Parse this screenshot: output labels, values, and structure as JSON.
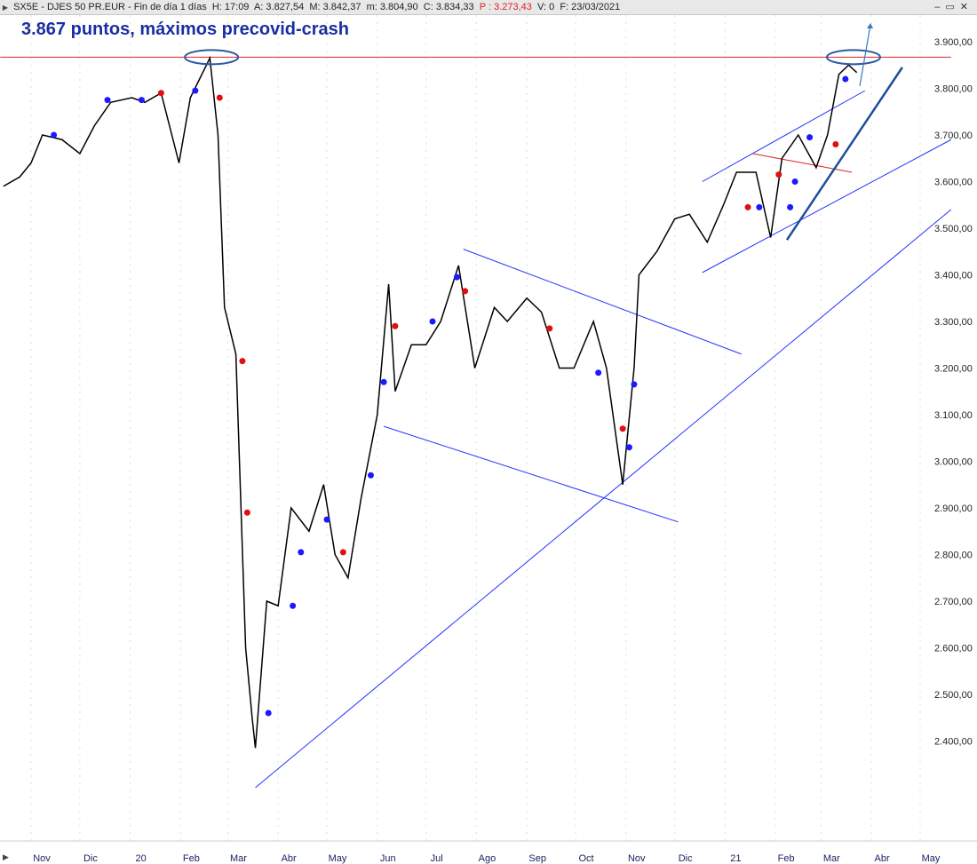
{
  "header": {
    "symbol": "SX5E - DJES 50 PR.EUR - Fin de día 1 días",
    "h": "H: 17:09",
    "a": "A: 3.827,54",
    "m_high": "M: 3.842,37",
    "m_low": "m: 3.804,90",
    "c": "C: 3.834,33",
    "p": "P : 3.273,43",
    "v": "V: 0",
    "f": "F: 23/03/2021"
  },
  "annotation": "3.867 puntos, máximos precovid-crash",
  "chart_data": {
    "type": "line",
    "title": "3.867 puntos, máximos precovid-crash",
    "ylim": [
      2280,
      3960
    ],
    "yticks": [
      2400,
      2500,
      2600,
      2700,
      2800,
      2900,
      3000,
      3100,
      3200,
      3300,
      3400,
      3500,
      3600,
      3700,
      3800,
      3900
    ],
    "ytick_labels": [
      "2.400,00",
      "2.500,00",
      "2.600,00",
      "2.700,00",
      "2.800,00",
      "2.900,00",
      "3.000,00",
      "3.100,00",
      "3.200,00",
      "3.300,00",
      "3.400,00",
      "3.500,00",
      "3.600,00",
      "3.700,00",
      "3.800,00",
      "3.900,00"
    ],
    "xticks": [
      {
        "date": "2019-11-01",
        "label": "Nov"
      },
      {
        "date": "2019-12-01",
        "label": "Dic"
      },
      {
        "date": "2020-01-01",
        "label": "20"
      },
      {
        "date": "2020-02-01",
        "label": "Feb"
      },
      {
        "date": "2020-03-01",
        "label": "Mar"
      },
      {
        "date": "2020-04-01",
        "label": "Abr"
      },
      {
        "date": "2020-05-01",
        "label": "May"
      },
      {
        "date": "2020-06-01",
        "label": "Jun"
      },
      {
        "date": "2020-07-01",
        "label": "Jul"
      },
      {
        "date": "2020-08-01",
        "label": "Ago"
      },
      {
        "date": "2020-09-01",
        "label": "Sep"
      },
      {
        "date": "2020-10-01",
        "label": "Oct"
      },
      {
        "date": "2020-11-01",
        "label": "Nov"
      },
      {
        "date": "2020-12-01",
        "label": "Dic"
      },
      {
        "date": "2021-01-01",
        "label": "21"
      },
      {
        "date": "2021-02-01",
        "label": "Feb"
      },
      {
        "date": "2021-03-01",
        "label": "Mar"
      },
      {
        "date": "2021-04-01",
        "label": "Abr"
      },
      {
        "date": "2021-05-01",
        "label": "May"
      }
    ],
    "series": [
      {
        "color": "#000000",
        "points": [
          [
            "2019-10-15",
            3590
          ],
          [
            "2019-10-25",
            3610
          ],
          [
            "2019-11-01",
            3640
          ],
          [
            "2019-11-08",
            3700
          ],
          [
            "2019-11-20",
            3690
          ],
          [
            "2019-12-01",
            3660
          ],
          [
            "2019-12-10",
            3720
          ],
          [
            "2019-12-20",
            3770
          ],
          [
            "2020-01-02",
            3780
          ],
          [
            "2020-01-10",
            3770
          ],
          [
            "2020-01-20",
            3790
          ],
          [
            "2020-01-31",
            3640
          ],
          [
            "2020-02-07",
            3780
          ],
          [
            "2020-02-19",
            3865
          ],
          [
            "2020-02-24",
            3700
          ],
          [
            "2020-02-28",
            3330
          ],
          [
            "2020-03-06",
            3230
          ],
          [
            "2020-03-12",
            2600
          ],
          [
            "2020-03-16",
            2450
          ],
          [
            "2020-03-18",
            2385
          ],
          [
            "2020-03-25",
            2700
          ],
          [
            "2020-04-01",
            2690
          ],
          [
            "2020-04-09",
            2900
          ],
          [
            "2020-04-20",
            2850
          ],
          [
            "2020-04-29",
            2950
          ],
          [
            "2020-05-06",
            2800
          ],
          [
            "2020-05-14",
            2750
          ],
          [
            "2020-05-22",
            2920
          ],
          [
            "2020-06-01",
            3100
          ],
          [
            "2020-06-08",
            3380
          ],
          [
            "2020-06-12",
            3150
          ],
          [
            "2020-06-22",
            3250
          ],
          [
            "2020-07-01",
            3250
          ],
          [
            "2020-07-10",
            3300
          ],
          [
            "2020-07-21",
            3420
          ],
          [
            "2020-07-31",
            3200
          ],
          [
            "2020-08-12",
            3330
          ],
          [
            "2020-08-20",
            3300
          ],
          [
            "2020-09-01",
            3350
          ],
          [
            "2020-09-10",
            3320
          ],
          [
            "2020-09-21",
            3200
          ],
          [
            "2020-09-30",
            3200
          ],
          [
            "2020-10-12",
            3300
          ],
          [
            "2020-10-20",
            3200
          ],
          [
            "2020-10-30",
            2950
          ],
          [
            "2020-11-06",
            3200
          ],
          [
            "2020-11-09",
            3400
          ],
          [
            "2020-11-20",
            3450
          ],
          [
            "2020-12-01",
            3520
          ],
          [
            "2020-12-10",
            3530
          ],
          [
            "2020-12-21",
            3470
          ],
          [
            "2020-12-31",
            3550
          ],
          [
            "2021-01-08",
            3620
          ],
          [
            "2021-01-20",
            3620
          ],
          [
            "2021-01-29",
            3480
          ],
          [
            "2021-02-05",
            3650
          ],
          [
            "2021-02-15",
            3700
          ],
          [
            "2021-02-26",
            3630
          ],
          [
            "2021-03-05",
            3700
          ],
          [
            "2021-03-12",
            3830
          ],
          [
            "2021-03-18",
            3850
          ],
          [
            "2021-03-23",
            3834
          ]
        ]
      }
    ],
    "markers": [
      {
        "date": "2019-11-15",
        "value": 3700,
        "color": "#1a1aff"
      },
      {
        "date": "2019-12-18",
        "value": 3775,
        "color": "#1a1aff"
      },
      {
        "date": "2020-01-08",
        "value": 3775,
        "color": "#1a1aff"
      },
      {
        "date": "2020-01-20",
        "value": 3790,
        "color": "#e01010"
      },
      {
        "date": "2020-02-10",
        "value": 3795,
        "color": "#1a1aff"
      },
      {
        "date": "2020-02-25",
        "value": 3780,
        "color": "#e01010"
      },
      {
        "date": "2020-03-10",
        "value": 3215,
        "color": "#e01010"
      },
      {
        "date": "2020-03-13",
        "value": 2890,
        "color": "#e01010"
      },
      {
        "date": "2020-03-26",
        "value": 2460,
        "color": "#1a1aff"
      },
      {
        "date": "2020-04-10",
        "value": 2690,
        "color": "#1a1aff"
      },
      {
        "date": "2020-04-15",
        "value": 2805,
        "color": "#1a1aff"
      },
      {
        "date": "2020-05-01",
        "value": 2875,
        "color": "#1a1aff"
      },
      {
        "date": "2020-05-11",
        "value": 2805,
        "color": "#e01010"
      },
      {
        "date": "2020-05-28",
        "value": 2970,
        "color": "#1a1aff"
      },
      {
        "date": "2020-06-05",
        "value": 3170,
        "color": "#1a1aff"
      },
      {
        "date": "2020-06-12",
        "value": 3290,
        "color": "#e01010"
      },
      {
        "date": "2020-07-05",
        "value": 3300,
        "color": "#1a1aff"
      },
      {
        "date": "2020-07-20",
        "value": 3395,
        "color": "#1a1aff"
      },
      {
        "date": "2020-07-25",
        "value": 3365,
        "color": "#e01010"
      },
      {
        "date": "2020-09-15",
        "value": 3285,
        "color": "#e01010"
      },
      {
        "date": "2020-10-15",
        "value": 3190,
        "color": "#1a1aff"
      },
      {
        "date": "2020-10-30",
        "value": 3070,
        "color": "#e01010"
      },
      {
        "date": "2020-11-03",
        "value": 3030,
        "color": "#1a1aff"
      },
      {
        "date": "2020-11-06",
        "value": 3165,
        "color": "#1a1aff"
      },
      {
        "date": "2021-01-15",
        "value": 3545,
        "color": "#e01010"
      },
      {
        "date": "2021-01-22",
        "value": 3545,
        "color": "#1a1aff"
      },
      {
        "date": "2021-02-03",
        "value": 3615,
        "color": "#e01010"
      },
      {
        "date": "2021-02-10",
        "value": 3545,
        "color": "#1a1aff"
      },
      {
        "date": "2021-02-13",
        "value": 3600,
        "color": "#1a1aff"
      },
      {
        "date": "2021-02-22",
        "value": 3695,
        "color": "#1a1aff"
      },
      {
        "date": "2021-03-10",
        "value": 3680,
        "color": "#e01010"
      },
      {
        "date": "2021-03-16",
        "value": 3820,
        "color": "#1a1aff"
      }
    ],
    "lines": [
      {
        "from": [
          "2019-10-13",
          3867
        ],
        "to": [
          "2021-05-20",
          3867
        ],
        "color": "#e02020"
      },
      {
        "from": [
          "2020-03-18",
          2300
        ],
        "to": [
          "2021-05-20",
          3540
        ],
        "color": "#2233ff"
      },
      {
        "from": [
          "2020-06-05",
          3075
        ],
        "to": [
          "2020-12-03",
          2870
        ],
        "color": "#2233ff"
      },
      {
        "from": [
          "2020-07-24",
          3455
        ],
        "to": [
          "2021-01-11",
          3230
        ],
        "color": "#2233ff"
      },
      {
        "from": [
          "2020-12-18",
          3405
        ],
        "to": [
          "2021-05-20",
          3690
        ],
        "color": "#2233ff"
      },
      {
        "from": [
          "2020-12-18",
          3600
        ],
        "to": [
          "2021-03-28",
          3795
        ],
        "color": "#2233ff"
      },
      {
        "from": [
          "2021-01-18",
          3660
        ],
        "to": [
          "2021-03-20",
          3620
        ],
        "color": "#e02020"
      },
      {
        "from": [
          "2021-02-08",
          3475
        ],
        "to": [
          "2021-04-20",
          3845
        ],
        "color": "#1f4e9a"
      }
    ],
    "highlights": [
      {
        "date": "2020-02-20",
        "value": 3867
      },
      {
        "date": "2021-03-21",
        "value": 3867
      }
    ]
  }
}
